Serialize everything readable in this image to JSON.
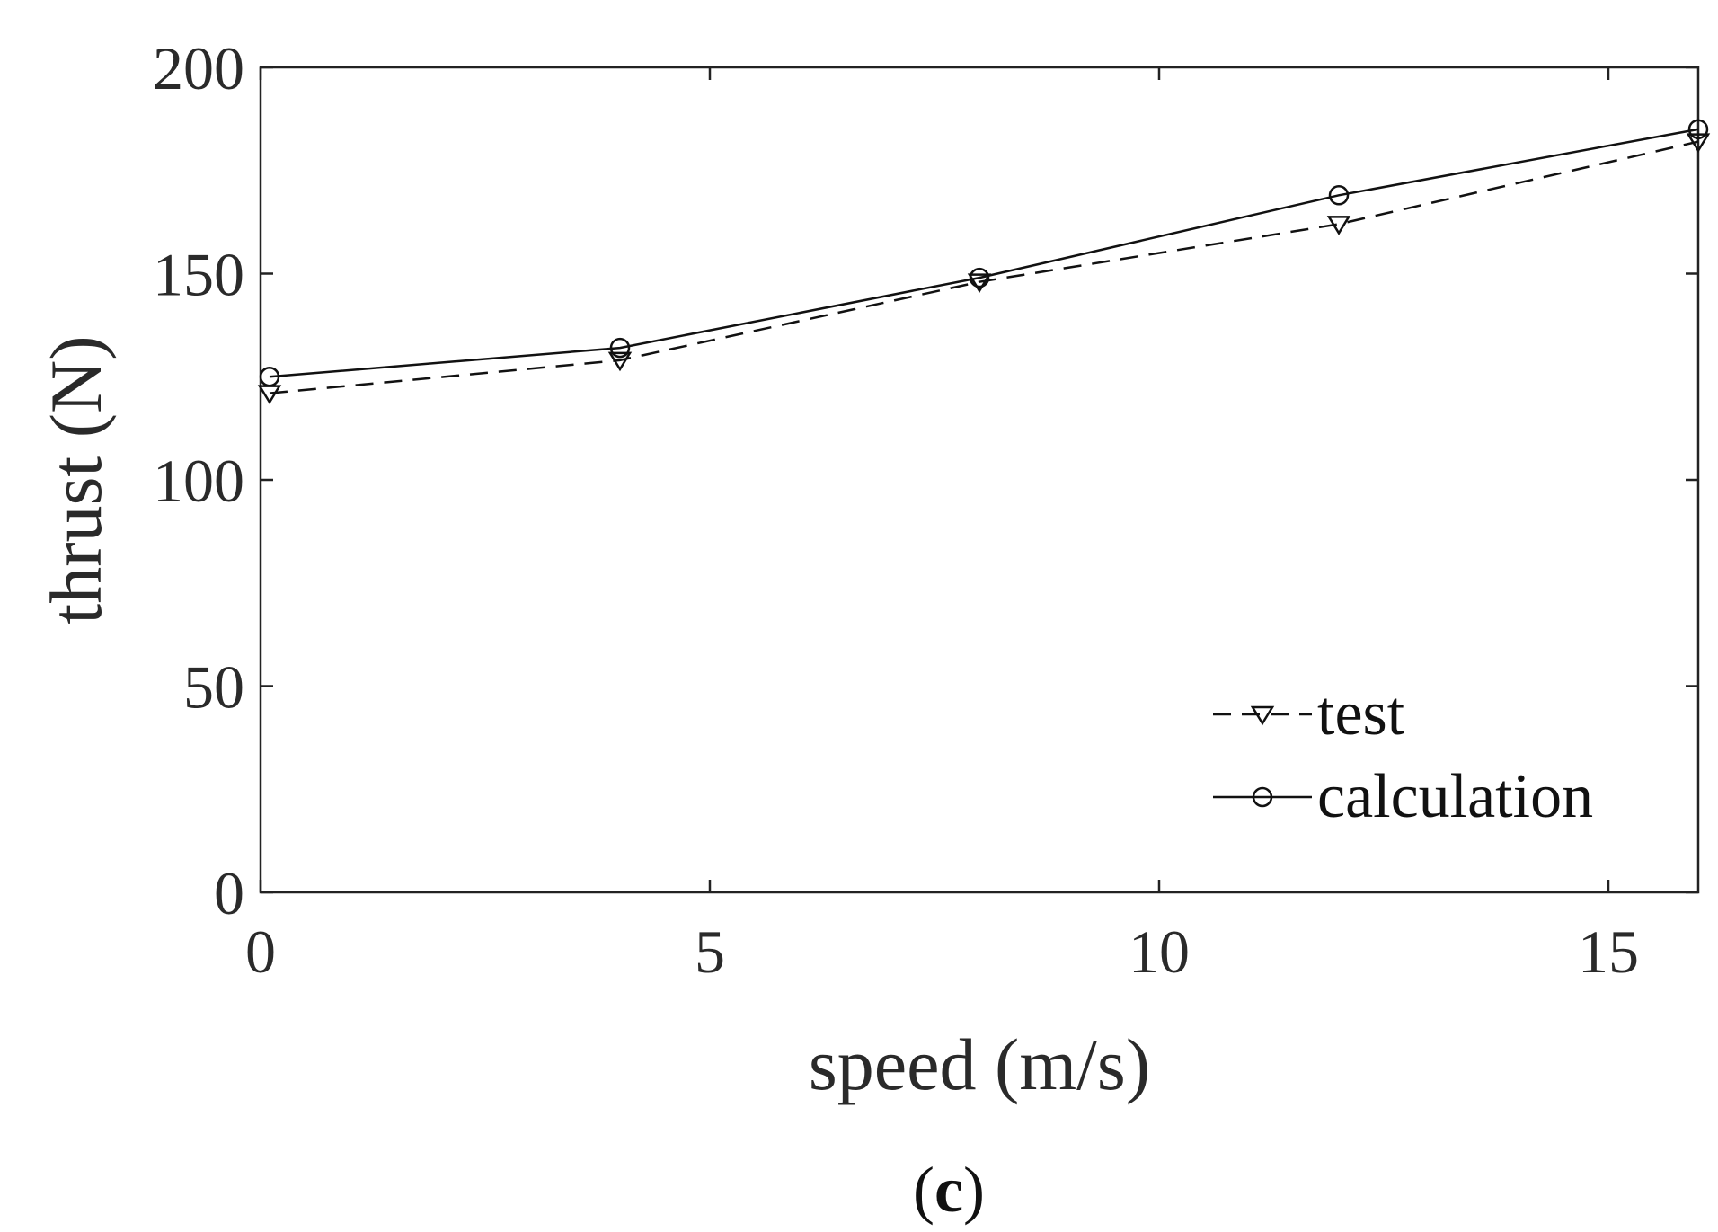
{
  "chart_data": {
    "type": "line",
    "title": "",
    "xlabel": "speed (m/s)",
    "ylabel": "thrust (N)",
    "xlim": [
      0,
      16
    ],
    "ylim": [
      0,
      200
    ],
    "xticks": [
      0,
      5,
      10,
      15
    ],
    "yticks": [
      0,
      50,
      100,
      150,
      200
    ],
    "grid": false,
    "legend_position": "bottom-right",
    "series": [
      {
        "name": "test",
        "line_style": "dashed",
        "marker": "triangle-down",
        "color": "#111111",
        "x": [
          0.1,
          4,
          8,
          12,
          16
        ],
        "y": [
          121,
          129,
          148,
          162,
          182
        ]
      },
      {
        "name": "calculation",
        "line_style": "solid",
        "marker": "circle",
        "color": "#111111",
        "x": [
          0.1,
          4,
          8,
          12,
          16
        ],
        "y": [
          125,
          132,
          149,
          169,
          185
        ]
      }
    ]
  },
  "caption": {
    "open": "(",
    "letter": "c",
    "close": ")"
  }
}
